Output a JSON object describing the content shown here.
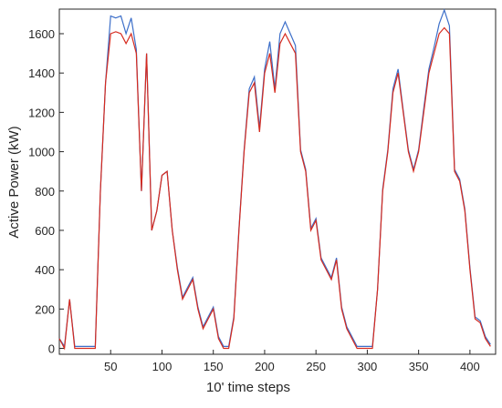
{
  "chart_data": {
    "type": "line",
    "xlabel": "10' time steps",
    "ylabel": "Active Power (kW)",
    "x": [
      0,
      5,
      10,
      15,
      20,
      25,
      30,
      35,
      40,
      45,
      50,
      55,
      60,
      65,
      70,
      75,
      80,
      85,
      90,
      95,
      100,
      105,
      110,
      115,
      120,
      125,
      130,
      135,
      140,
      145,
      150,
      155,
      160,
      165,
      170,
      175,
      180,
      185,
      190,
      195,
      200,
      205,
      210,
      215,
      220,
      225,
      230,
      235,
      240,
      245,
      250,
      255,
      260,
      265,
      270,
      275,
      280,
      285,
      290,
      295,
      300,
      305,
      310,
      315,
      320,
      325,
      330,
      335,
      340,
      345,
      350,
      355,
      360,
      365,
      370,
      375,
      380,
      385,
      390,
      395,
      400,
      405,
      410,
      415,
      420
    ],
    "series": [
      {
        "name": "blue",
        "color": "#3d6fc9",
        "values": [
          50,
          10,
          250,
          10,
          10,
          10,
          10,
          10,
          800,
          1350,
          1690,
          1680,
          1690,
          1600,
          1680,
          1520,
          800,
          1500,
          600,
          700,
          880,
          900,
          600,
          410,
          260,
          310,
          360,
          210,
          110,
          160,
          210,
          60,
          10,
          10,
          160,
          610,
          1010,
          1320,
          1380,
          1120,
          1420,
          1560,
          1320,
          1600,
          1660,
          1600,
          1540,
          1010,
          910,
          610,
          660,
          460,
          410,
          360,
          460,
          210,
          110,
          60,
          10,
          10,
          10,
          10,
          300,
          810,
          1010,
          1320,
          1420,
          1210,
          1010,
          910,
          1010,
          1220,
          1420,
          1530,
          1650,
          1720,
          1640,
          910,
          860,
          710,
          410,
          160,
          140,
          60,
          20
        ]
      },
      {
        "name": "red",
        "color": "#d62a1e",
        "values": [
          50,
          0,
          250,
          0,
          0,
          0,
          0,
          0,
          800,
          1350,
          1600,
          1610,
          1600,
          1550,
          1600,
          1500,
          800,
          1500,
          600,
          700,
          880,
          900,
          600,
          400,
          250,
          300,
          350,
          200,
          100,
          150,
          200,
          50,
          0,
          0,
          150,
          600,
          1000,
          1300,
          1350,
          1100,
          1400,
          1500,
          1300,
          1550,
          1600,
          1550,
          1500,
          1000,
          900,
          600,
          650,
          450,
          400,
          350,
          450,
          200,
          100,
          50,
          0,
          0,
          0,
          0,
          300,
          800,
          1000,
          1300,
          1400,
          1200,
          1000,
          900,
          1000,
          1200,
          1400,
          1500,
          1600,
          1630,
          1600,
          900,
          850,
          700,
          400,
          150,
          130,
          50,
          10
        ]
      }
    ],
    "xlim": [
      0,
      425
    ],
    "ylim": [
      -30,
      1725
    ],
    "xticks": [
      50,
      100,
      150,
      200,
      250,
      300,
      350,
      400
    ],
    "yticks": [
      0,
      200,
      400,
      600,
      800,
      1000,
      1200,
      1400,
      1600
    ]
  }
}
